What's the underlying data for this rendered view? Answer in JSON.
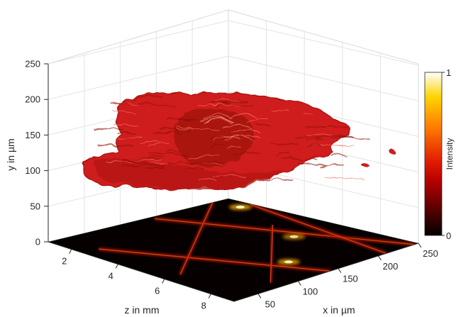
{
  "chart_data": {
    "type": "surface3d-isosurface-with-projection",
    "xlabel": "z in mm",
    "ylabel": "y in µm",
    "zlabel_axis": "x in µm",
    "colorbar_label": "Intensity",
    "z_mm_ticks": [
      "2",
      "4",
      "6",
      "8"
    ],
    "y_um_ticks": [
      "0",
      "50",
      "100",
      "150",
      "200",
      "250"
    ],
    "x_um_ticks": [
      "50",
      "100",
      "150",
      "200",
      "250"
    ],
    "z_mm_range": [
      1,
      9
    ],
    "y_um_range": [
      0,
      250
    ],
    "x_um_range": [
      20,
      250
    ],
    "colorbar_ticks": [
      "0",
      "1"
    ],
    "colorbar_range": [
      0,
      1
    ],
    "colormap": "hot",
    "isosurface_color": "#d11f1b",
    "grid": true,
    "caustic_lines": [
      {
        "from": [
          1.2,
          150
        ],
        "to": [
          9.0,
          245
        ]
      },
      {
        "from": [
          2.5,
          40
        ],
        "to": [
          9.0,
          140
        ]
      },
      {
        "from": [
          1.0,
          230
        ],
        "to": [
          6.0,
          40
        ]
      },
      {
        "from": [
          4.2,
          210
        ],
        "to": [
          8.5,
          80
        ]
      },
      {
        "from": [
          2.0,
          248
        ],
        "to": [
          9.0,
          210
        ]
      }
    ],
    "hot_spots": [
      {
        "z": 2.0,
        "x": 235,
        "intensity": 1.0
      },
      {
        "z": 5.6,
        "x": 195,
        "intensity": 0.8
      },
      {
        "z": 7.4,
        "x": 135,
        "intensity": 0.95
      }
    ]
  }
}
